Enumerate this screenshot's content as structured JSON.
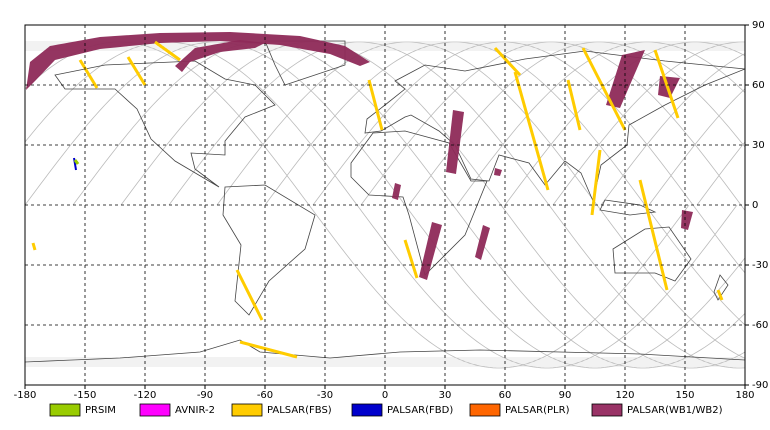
{
  "chart_data": {
    "type": "map",
    "xlim": [
      -180,
      180
    ],
    "ylim": [
      -90,
      90
    ],
    "xticks": [
      -180,
      -150,
      -120,
      -90,
      -60,
      -30,
      0,
      30,
      60,
      90,
      120,
      150,
      180
    ],
    "yticks": [
      90,
      60,
      30,
      0,
      -30,
      -60,
      -90
    ],
    "grid": true,
    "legend": [
      {
        "name": "PRSIM",
        "color": "#99cc00"
      },
      {
        "name": "AVNIR-2",
        "color": "#ff00ff"
      },
      {
        "name": "PALSAR(FBS)",
        "color": "#ffcc00"
      },
      {
        "name": "PALSAR(FBD)",
        "color": "#0000cc"
      },
      {
        "name": "PALSAR(PLR)",
        "color": "#ff6600"
      },
      {
        "name": "PALSAR(WB1/WB2)",
        "color": "#993366"
      }
    ]
  }
}
